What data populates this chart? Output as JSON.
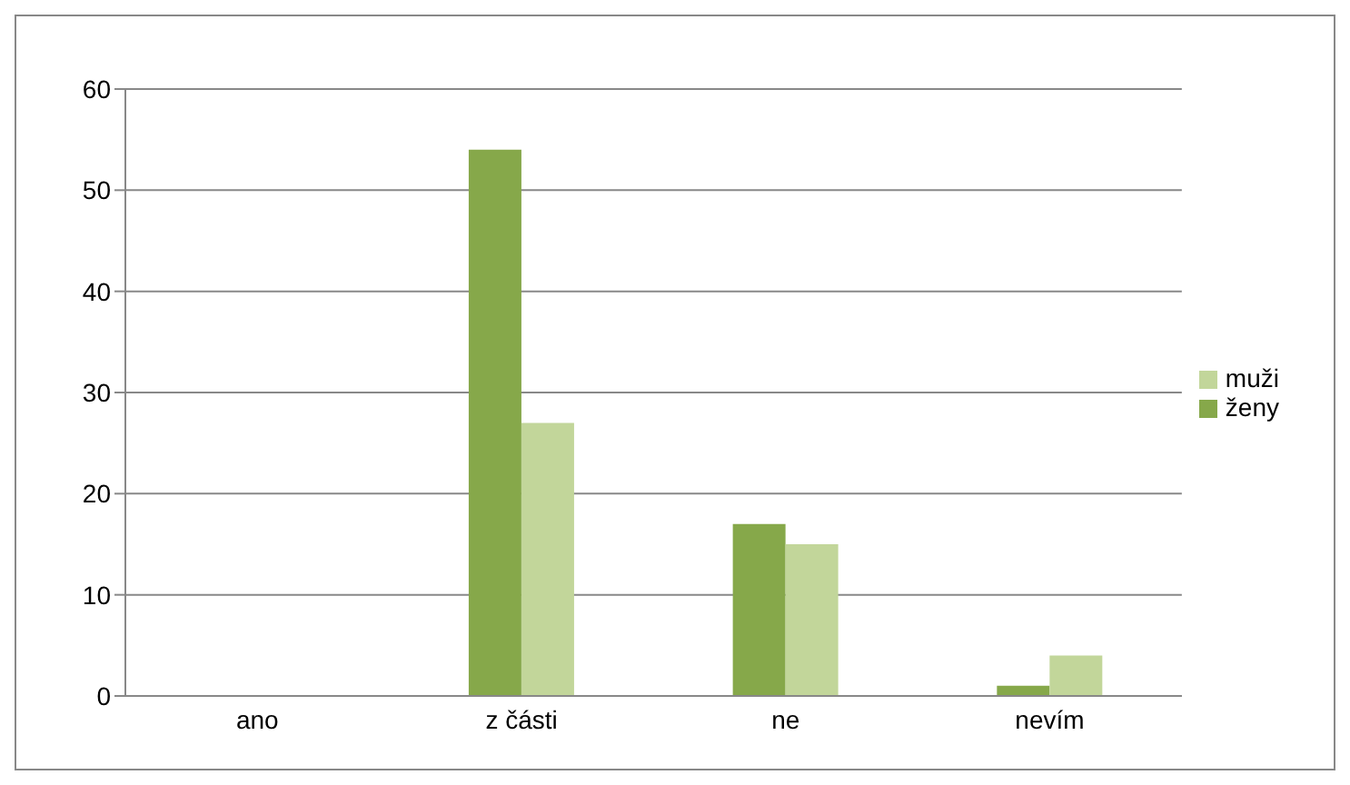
{
  "chart_data": {
    "type": "bar",
    "categories": [
      "ano",
      "z části",
      "ne",
      "nevím"
    ],
    "series": [
      {
        "name": "ženy",
        "color": "#86a84a",
        "values": [
          0,
          54,
          17,
          1
        ]
      },
      {
        "name": "muži",
        "color": "#c2d69a",
        "values": [
          0,
          27,
          15,
          4
        ]
      }
    ],
    "ylim": [
      0,
      60
    ],
    "yticks": [
      0,
      10,
      20,
      30,
      40,
      50,
      60
    ],
    "grid": "y",
    "legend": "right"
  }
}
